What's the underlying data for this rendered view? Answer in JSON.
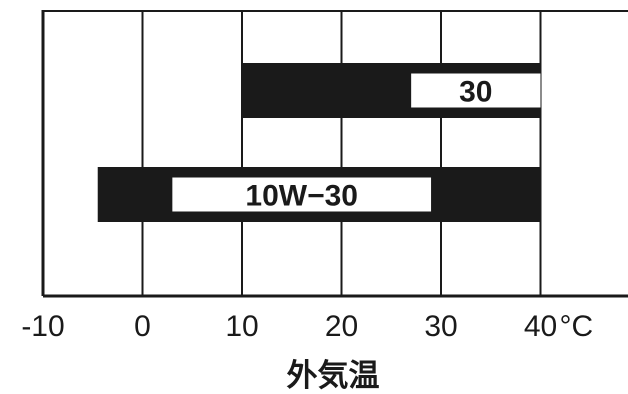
{
  "chart_data": {
    "type": "bar",
    "orientation": "horizontal",
    "xlabel": "外気温",
    "xlim": [
      -10,
      40
    ],
    "x_ticks": [
      -10,
      0,
      10,
      20,
      30,
      40
    ],
    "x_tick_labels": [
      "-10",
      "0",
      "10",
      "20",
      "30",
      "40"
    ],
    "unit": "°C",
    "grid": true,
    "bars": [
      {
        "label": "30",
        "start": 10,
        "end": 40
      },
      {
        "label": "10W−30",
        "start": -4.5,
        "end": 40
      }
    ],
    "colors": {
      "bar": "#1a1a1a",
      "grid": "#1a1a1a",
      "background": "#ffffff"
    }
  }
}
